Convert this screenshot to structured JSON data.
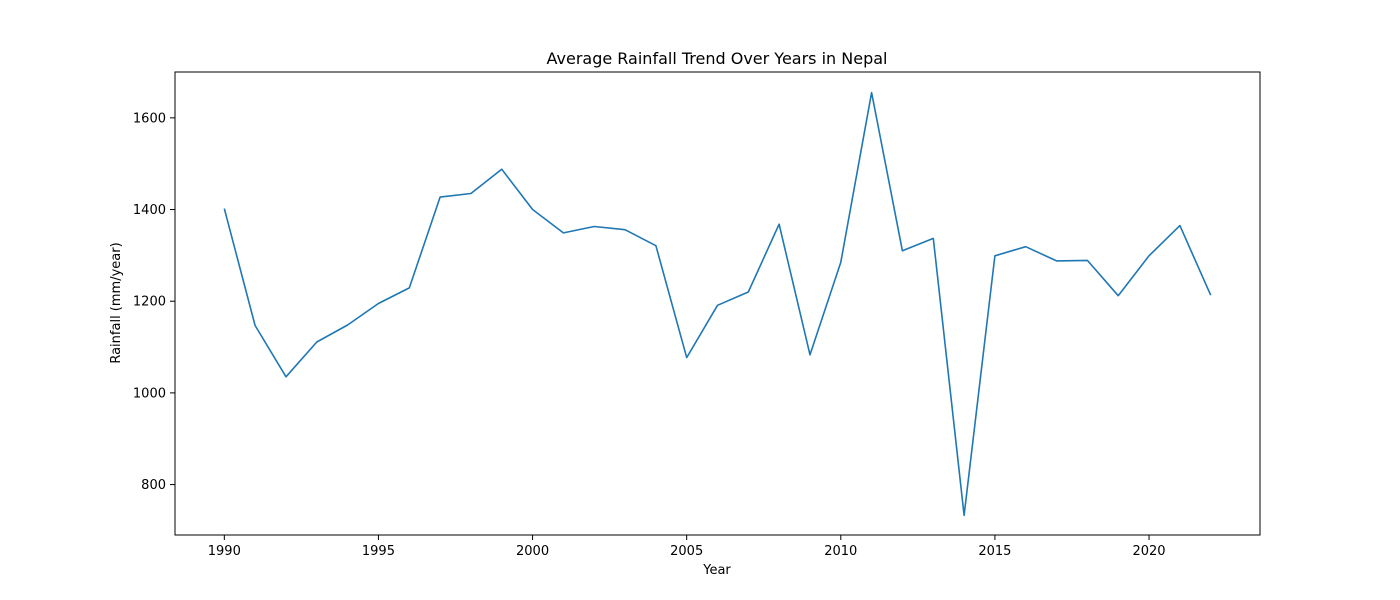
{
  "chart_data": {
    "type": "line",
    "title": "Average Rainfall Trend Over Years in Nepal",
    "xlabel": "Year",
    "ylabel": "Rainfall (mm/year)",
    "xlim": [
      1988.4,
      2023.6
    ],
    "ylim": [
      690,
      1700
    ],
    "xticks": [
      1990,
      1995,
      2000,
      2005,
      2010,
      2015,
      2020
    ],
    "yticks": [
      800,
      1000,
      1200,
      1400,
      1600
    ],
    "grid": false,
    "line_color": "#1f77b4",
    "x": [
      1990,
      1991,
      1992,
      1993,
      1994,
      1995,
      1996,
      1997,
      1998,
      1999,
      2000,
      2001,
      2002,
      2003,
      2004,
      2005,
      2006,
      2007,
      2008,
      2009,
      2010,
      2011,
      2012,
      2013,
      2014,
      2015,
      2016,
      2017,
      2018,
      2019,
      2020,
      2021,
      2022
    ],
    "y": [
      1402,
      1147,
      1035,
      1111,
      1148,
      1195,
      1229,
      1427,
      1435,
      1488,
      1400,
      1349,
      1363,
      1356,
      1321,
      1077,
      1191,
      1220,
      1368,
      1083,
      1285,
      1655,
      1310,
      1337,
      733,
      1299,
      1319,
      1288,
      1289,
      1212,
      1299,
      1365,
      1213
    ]
  }
}
